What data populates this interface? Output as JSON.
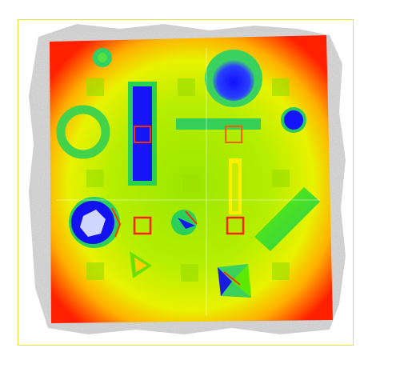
{
  "viewer": {
    "colormap": [
      "#1a1aff",
      "#22dd44",
      "#b8f000",
      "#ffff00",
      "#ff8800",
      "#ff1a00"
    ],
    "frame_color": "#e8e23a",
    "noise_color": "#c8c8c8",
    "background": "#ffffff"
  }
}
